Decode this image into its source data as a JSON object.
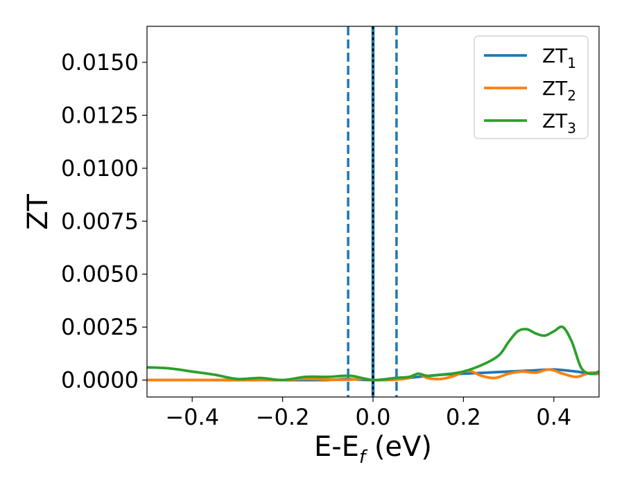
{
  "chart_data": {
    "type": "line",
    "title": "",
    "xlabel_main": "E-E",
    "xlabel_sub": "f",
    "xlabel_tail": " (eV)",
    "ylabel": "ZT",
    "xlim": [
      -0.5,
      0.5
    ],
    "ylim": [
      -0.0008,
      0.0167
    ],
    "xticks": [
      -0.4,
      -0.2,
      0.0,
      0.2,
      0.4
    ],
    "xtick_labels": [
      "−0.4",
      "−0.2",
      "0.0",
      "0.2",
      "0.4"
    ],
    "yticks": [
      0.0,
      0.0025,
      0.005,
      0.0075,
      0.01,
      0.0125,
      0.015
    ],
    "ytick_labels": [
      "0.0000",
      "0.0025",
      "0.0050",
      "0.0075",
      "0.0100",
      "0.0125",
      "0.0150"
    ],
    "grid": false,
    "legend_position": "top-right",
    "vlines": [
      {
        "x": -0.055,
        "style": "dashed",
        "color": "#1f77b4"
      },
      {
        "x": 0.0,
        "style": "solid",
        "color": "#1f77b4"
      },
      {
        "x": 0.0,
        "style": "dotted",
        "color": "#000000"
      },
      {
        "x": 0.052,
        "style": "dashed",
        "color": "#1f77b4"
      }
    ],
    "series": [
      {
        "name": "ZT",
        "subscript": "1",
        "color": "#1f77b4",
        "x": [
          -0.5,
          -0.45,
          -0.4,
          -0.35,
          -0.3,
          -0.25,
          -0.2,
          -0.15,
          -0.1,
          -0.06,
          -0.04,
          -0.02,
          0.0,
          0.02,
          0.04,
          0.06,
          0.08,
          0.1,
          0.15,
          0.2,
          0.25,
          0.3,
          0.35,
          0.4,
          0.45,
          0.48,
          0.5
        ],
        "y": [
          0.0,
          0.0,
          0.0,
          0.0,
          0.0,
          0.0,
          0.0,
          0.0,
          0.0,
          5e-05,
          3e-05,
          1e-05,
          0.0,
          0.0,
          2e-05,
          5e-05,
          0.0001,
          0.00015,
          0.00025,
          0.0003,
          0.00035,
          0.0004,
          0.00045,
          0.0005,
          0.0004,
          0.0003,
          0.0003
        ]
      },
      {
        "name": "ZT",
        "subscript": "2",
        "color": "#ff7f0e",
        "x": [
          -0.5,
          -0.4,
          -0.3,
          -0.25,
          -0.2,
          -0.15,
          -0.1,
          -0.06,
          -0.04,
          -0.02,
          0.0,
          0.02,
          0.05,
          0.08,
          0.1,
          0.12,
          0.15,
          0.18,
          0.21,
          0.24,
          0.27,
          0.3,
          0.33,
          0.36,
          0.39,
          0.42,
          0.45,
          0.48,
          0.5
        ],
        "y": [
          0.0,
          0.0,
          1e-05,
          0.0,
          0.0,
          6e-05,
          2e-05,
          1e-05,
          3e-05,
          6e-05,
          0.0,
          0.0,
          2e-05,
          0.0001,
          0.0003,
          0.0001,
          5e-05,
          0.0002,
          0.00045,
          0.0002,
          0.0001,
          0.0003,
          0.0004,
          0.00035,
          0.0005,
          0.0003,
          0.00015,
          0.00035,
          0.0003
        ]
      },
      {
        "name": "ZT",
        "subscript": "3",
        "color": "#2ca02c",
        "x": [
          -0.5,
          -0.45,
          -0.4,
          -0.35,
          -0.3,
          -0.25,
          -0.2,
          -0.15,
          -0.1,
          -0.05,
          0.0,
          0.05,
          0.08,
          0.1,
          0.12,
          0.15,
          0.2,
          0.25,
          0.28,
          0.3,
          0.32,
          0.34,
          0.36,
          0.38,
          0.4,
          0.42,
          0.44,
          0.46,
          0.48,
          0.5
        ],
        "y": [
          0.0006,
          0.00055,
          0.0004,
          0.00025,
          5e-05,
          0.0001,
          0.0,
          0.00015,
          0.00015,
          0.0002,
          0.0,
          0.0001,
          0.00015,
          0.0003,
          0.0002,
          0.00025,
          0.0004,
          0.0008,
          0.0012,
          0.0018,
          0.0023,
          0.0024,
          0.0022,
          0.0021,
          0.0023,
          0.0025,
          0.0018,
          0.0006,
          0.0003,
          0.0004
        ]
      }
    ]
  }
}
